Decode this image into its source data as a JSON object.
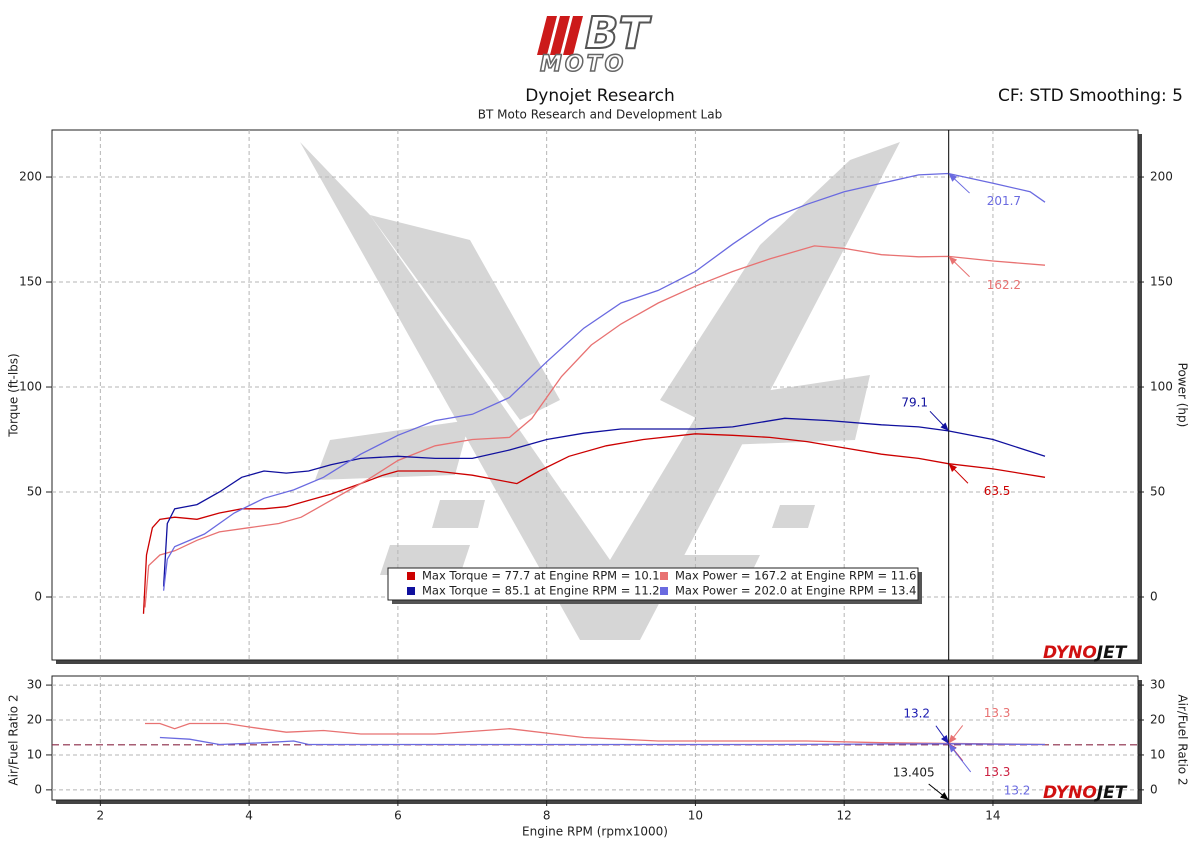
{
  "header": {
    "logo": "BT",
    "logo_sub": "MOTO",
    "title": "Dynojet Research",
    "subtitle": "BT Moto Research and Development Lab",
    "settings": "CF: STD Smoothing: 5"
  },
  "chart_data": [
    {
      "type": "line",
      "ylabel": "Torque (ft-lbs)",
      "y2label": "Power (hp)",
      "ylim": [
        -30,
        222.4
      ],
      "yticks": [
        0,
        50,
        100,
        150,
        200
      ],
      "y2lim": [
        -30,
        222.4
      ],
      "y2ticks": [
        0,
        50,
        100,
        150,
        200
      ],
      "grid": true,
      "brand": [
        "DYNO",
        "JET"
      ],
      "series": [
        {
          "name": "Max Torque = 77.7 at Engine RPM = 10.1",
          "color": "#cc0000",
          "cursor_value": 63.5,
          "x": [
            2.58,
            2.62,
            2.7,
            2.8,
            3.0,
            3.3,
            3.6,
            3.9,
            4.2,
            4.5,
            4.8,
            5.1,
            5.5,
            5.8,
            6.0,
            6.5,
            7.0,
            7.3,
            7.6,
            7.9,
            8.3,
            8.8,
            9.3,
            10.0,
            10.5,
            11.0,
            11.5,
            12.0,
            12.5,
            13.0,
            13.4,
            14.0,
            14.7
          ],
          "values": [
            -8,
            20,
            33,
            37,
            38,
            37,
            40,
            42,
            42,
            43,
            46,
            49,
            54,
            58,
            60,
            60,
            58,
            56,
            54,
            60,
            67,
            72,
            75,
            77.7,
            77,
            76,
            74,
            71,
            68,
            66,
            63.5,
            61,
            57
          ]
        },
        {
          "name": "Max Power = 167.2 at Engine RPM = 11.6",
          "color": "#e87272",
          "axis": "y2",
          "cursor_value": 162.2,
          "x": [
            2.6,
            2.65,
            2.8,
            3.0,
            3.3,
            3.6,
            4.0,
            4.4,
            4.7,
            5.0,
            5.3,
            5.6,
            6.0,
            6.5,
            7.0,
            7.5,
            7.8,
            8.2,
            8.6,
            9.0,
            9.5,
            10.0,
            10.5,
            11.0,
            11.6,
            12.0,
            12.5,
            13.0,
            13.4,
            14.0,
            14.7
          ],
          "values": [
            -5,
            15,
            20,
            22,
            27,
            31,
            33,
            35,
            38,
            44,
            50,
            56,
            65,
            72,
            75,
            76,
            85,
            105,
            120,
            130,
            140,
            148,
            155,
            161,
            167.2,
            166,
            163,
            162,
            162.2,
            160,
            158
          ]
        },
        {
          "name": "Max Torque = 85.1 at Engine RPM = 11.2",
          "color": "#10109e",
          "cursor_value": 79.1,
          "x": [
            2.85,
            2.9,
            3.0,
            3.3,
            3.6,
            3.9,
            4.2,
            4.5,
            4.8,
            5.1,
            5.5,
            6.0,
            6.5,
            7.0,
            7.5,
            8.0,
            8.5,
            9.0,
            9.5,
            10.0,
            10.5,
            11.2,
            11.8,
            12.5,
            13.0,
            13.4,
            14.0,
            14.7
          ],
          "values": [
            5,
            35,
            42,
            44,
            50,
            57,
            60,
            59,
            60,
            63,
            66,
            67,
            66,
            66,
            70,
            75,
            78,
            80,
            80,
            80,
            81,
            85.1,
            84,
            82,
            81,
            79.1,
            75,
            67
          ]
        },
        {
          "name": "Max Power = 202.0 at Engine RPM = 13.4",
          "color": "#6a6ae0",
          "axis": "y2",
          "cursor_value": 201.7,
          "x": [
            2.85,
            2.9,
            3.0,
            3.4,
            3.8,
            4.2,
            4.6,
            5.0,
            5.5,
            6.0,
            6.5,
            7.0,
            7.5,
            8.0,
            8.5,
            9.0,
            9.5,
            10.0,
            10.5,
            11.0,
            11.5,
            12.0,
            12.5,
            13.0,
            13.4,
            14.0,
            14.5,
            14.7
          ],
          "values": [
            3,
            18,
            24,
            30,
            40,
            47,
            51,
            57,
            68,
            77,
            84,
            87,
            95,
            112,
            128,
            140,
            146,
            155,
            168,
            180,
            187,
            193,
            197,
            201,
            201.7,
            197,
            193,
            188
          ]
        }
      ]
    },
    {
      "type": "line",
      "xlabel": "Engine RPM (rpmx1000)",
      "xlim": [
        1.35,
        15.95
      ],
      "xticks": [
        2,
        4,
        6,
        8,
        10,
        12,
        14
      ],
      "ylabel": "Air/Fuel Ratio 2",
      "y2label": "Air/Fuel Ratio 2",
      "ylim": [
        -2.9,
        32.6
      ],
      "yticks": [
        0,
        10,
        20,
        30
      ],
      "y2lim": [
        -2.9,
        32.6
      ],
      "y2ticks": [
        0,
        10,
        20,
        30
      ],
      "grid": true,
      "reference_line": 12.9,
      "cursor_x": 13.405,
      "brand": [
        "DYNO",
        "JET"
      ],
      "series": [
        {
          "color": "#e87272",
          "cursor_values": [
            13.3,
            13.3
          ],
          "cursor_colors": [
            "#e87272",
            "#cc2040"
          ],
          "x": [
            2.6,
            2.8,
            3.0,
            3.2,
            3.7,
            4.0,
            4.5,
            5.0,
            5.5,
            6.5,
            7.5,
            8.5,
            9.5,
            10.5,
            11.5,
            12.5,
            13.4,
            14.7
          ],
          "values": [
            19,
            19,
            17.5,
            19,
            19,
            18,
            16.5,
            17,
            16,
            16,
            17.5,
            15,
            14,
            14,
            14,
            13.5,
            13.3,
            13
          ]
        },
        {
          "color": "#6a6ae0",
          "cursor_values": [
            13.2,
            13.2
          ],
          "cursor_colors": [
            "#1a1ab0",
            "#6a6ae0"
          ],
          "x": [
            2.8,
            3.2,
            3.6,
            4.2,
            4.6,
            4.8,
            5.5,
            7.0,
            9.0,
            11.0,
            13.4,
            14.7
          ],
          "values": [
            15,
            14.5,
            13,
            13.5,
            14,
            13,
            13,
            13,
            13,
            13,
            13.2,
            13
          ]
        }
      ]
    }
  ]
}
